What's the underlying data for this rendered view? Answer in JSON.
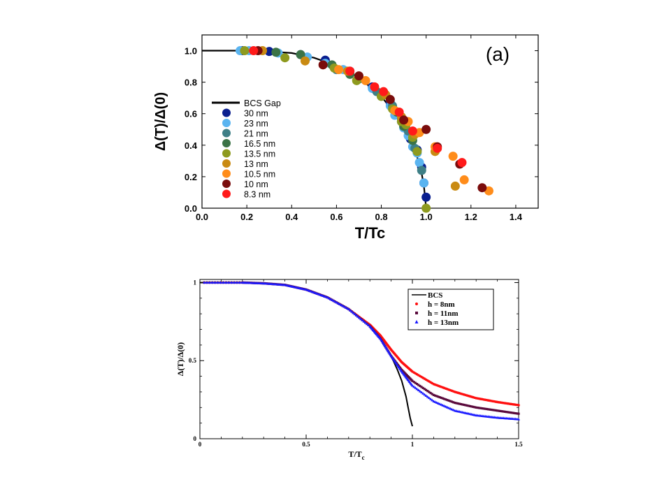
{
  "chart_data": [
    {
      "type": "scatter",
      "panel_label": "(a)",
      "xlabel": "T/Tc",
      "ylabel": "Δ(T)/Δ(0)",
      "xlim": [
        0.0,
        1.5
      ],
      "ylim": [
        0.0,
        1.1
      ],
      "xticks": [
        0.0,
        0.2,
        0.4,
        0.6,
        0.8,
        1.0,
        1.2,
        1.4
      ],
      "yticks": [
        0.0,
        0.2,
        0.4,
        0.6,
        0.8,
        1.0
      ],
      "xtick_labels": [
        "0.0",
        "0.2",
        "0.4",
        "0.6",
        "0.8",
        "1.0",
        "1.2",
        "1.4"
      ],
      "ytick_labels": [
        "0.0",
        "0.2",
        "0.4",
        "0.6",
        "0.8",
        "1.0"
      ],
      "grid": false,
      "legend_position": "left",
      "curve": {
        "name": "BCS Gap",
        "color": "#000000",
        "x": [
          0.0,
          0.2,
          0.3,
          0.4,
          0.5,
          0.6,
          0.7,
          0.8,
          0.85,
          0.9,
          0.93,
          0.95,
          0.97,
          0.98,
          0.99,
          1.0
        ],
        "y": [
          1.0,
          1.0,
          0.995,
          0.985,
          0.955,
          0.905,
          0.83,
          0.71,
          0.62,
          0.52,
          0.44,
          0.37,
          0.28,
          0.22,
          0.14,
          0.0
        ]
      },
      "series": [
        {
          "name": "30 nm",
          "color": "#0a1f8f",
          "x": [
            0.18,
            0.3,
            0.44,
            0.55,
            0.66,
            0.76,
            0.84,
            0.89,
            0.93,
            0.96,
            0.98,
            0.99,
            1.0
          ],
          "y": [
            1.0,
            0.995,
            0.975,
            0.94,
            0.87,
            0.77,
            0.67,
            0.55,
            0.44,
            0.37,
            0.26,
            0.16,
            0.07
          ]
        },
        {
          "name": "23 nm",
          "color": "#5ab4f0",
          "x": [
            0.17,
            0.21,
            0.34,
            0.47,
            0.55,
            0.63,
            0.7,
            0.76,
            0.84,
            0.86,
            0.9,
            0.92,
            0.94,
            0.96,
            0.97,
            0.99
          ],
          "y": [
            1.0,
            1.0,
            0.985,
            0.96,
            0.92,
            0.88,
            0.83,
            0.76,
            0.65,
            0.59,
            0.51,
            0.46,
            0.39,
            0.35,
            0.29,
            0.16
          ]
        },
        {
          "name": "21 nm",
          "color": "#3e7f86",
          "x": [
            0.6,
            0.7,
            0.78,
            0.85,
            0.89,
            0.92,
            0.95,
            0.98
          ],
          "y": [
            0.88,
            0.82,
            0.74,
            0.65,
            0.57,
            0.49,
            0.38,
            0.24
          ]
        },
        {
          "name": "16.5 nm",
          "color": "#3b7346",
          "x": [
            0.33,
            0.44,
            0.58,
            0.66,
            0.8,
            0.87,
            0.9,
            0.94
          ],
          "y": [
            0.99,
            0.975,
            0.91,
            0.85,
            0.71,
            0.61,
            0.52,
            0.43
          ]
        },
        {
          "name": "13.5 nm",
          "color": "#8e9a1e",
          "x": [
            0.19,
            0.37,
            0.59,
            0.69,
            0.8,
            0.85,
            0.89,
            0.91,
            0.94,
            0.96,
            1.0
          ],
          "y": [
            1.0,
            0.955,
            0.89,
            0.81,
            0.71,
            0.63,
            0.55,
            0.53,
            0.45,
            0.36,
            0.0
          ]
        },
        {
          "name": "13 nm",
          "color": "#c98a12",
          "x": [
            0.27,
            0.46,
            0.65,
            0.82,
            0.89,
            0.95,
            1.04,
            1.13
          ],
          "y": [
            1.0,
            0.935,
            0.87,
            0.72,
            0.58,
            0.47,
            0.36,
            0.14
          ]
        },
        {
          "name": "10.5 nm",
          "color": "#ff8c1a",
          "x": [
            0.61,
            0.73,
            0.86,
            0.92,
            0.97,
            1.04,
            1.12,
            1.17,
            1.28
          ],
          "y": [
            0.88,
            0.81,
            0.62,
            0.55,
            0.48,
            0.39,
            0.33,
            0.18,
            0.11
          ]
        },
        {
          "name": "10 nm",
          "color": "#7a0c0c",
          "x": [
            0.25,
            0.54,
            0.7,
            0.84,
            0.9,
            1.0,
            1.05,
            1.15,
            1.25
          ],
          "y": [
            1.0,
            0.91,
            0.84,
            0.69,
            0.56,
            0.5,
            0.39,
            0.28,
            0.13
          ]
        },
        {
          "name": "8.3 nm",
          "color": "#ff1a1a",
          "x": [
            0.23,
            0.66,
            0.77,
            0.81,
            0.88,
            0.94,
            1.05,
            1.16
          ],
          "y": [
            1.0,
            0.87,
            0.77,
            0.74,
            0.61,
            0.49,
            0.38,
            0.29
          ]
        }
      ]
    },
    {
      "type": "line",
      "xlabel": "T/T",
      "xlabel_sub": "c",
      "ylabel": "Δ(T)/Δ(0)",
      "xlim": [
        0.0,
        1.5
      ],
      "ylim": [
        0.0,
        1.02
      ],
      "xticks": [
        0,
        0.5,
        1,
        1.5
      ],
      "yticks": [
        0,
        0.5,
        1
      ],
      "xtick_labels": [
        "0",
        "0.5",
        "1",
        "1.5"
      ],
      "ytick_labels": [
        "0",
        "0.5",
        "1"
      ],
      "grid": false,
      "legend_position": "top-right",
      "series": [
        {
          "name": "BCS",
          "color": "#000000",
          "marker": "line",
          "x": [
            0.0,
            0.2,
            0.3,
            0.4,
            0.5,
            0.6,
            0.7,
            0.8,
            0.85,
            0.9,
            0.93,
            0.95,
            0.97,
            0.98,
            0.99,
            1.0
          ],
          "y": [
            1.0,
            1.0,
            0.995,
            0.985,
            0.955,
            0.905,
            0.83,
            0.72,
            0.64,
            0.53,
            0.44,
            0.37,
            0.27,
            0.2,
            0.13,
            0.08
          ]
        },
        {
          "name": "h = 8nm",
          "color": "#ff1010",
          "marker": "dot",
          "x": [
            0.02,
            0.2,
            0.3,
            0.4,
            0.5,
            0.6,
            0.7,
            0.8,
            0.85,
            0.9,
            0.95,
            1.0,
            1.1,
            1.2,
            1.3,
            1.4,
            1.5
          ],
          "y": [
            1.0,
            1.0,
            0.995,
            0.985,
            0.955,
            0.905,
            0.83,
            0.73,
            0.66,
            0.57,
            0.49,
            0.43,
            0.35,
            0.3,
            0.26,
            0.235,
            0.215
          ]
        },
        {
          "name": "h = 11nm",
          "color": "#5a0a3c",
          "marker": "square",
          "x": [
            0.02,
            0.2,
            0.3,
            0.4,
            0.5,
            0.6,
            0.7,
            0.8,
            0.85,
            0.9,
            0.95,
            1.0,
            1.1,
            1.2,
            1.3,
            1.4,
            1.5
          ],
          "y": [
            1.0,
            1.0,
            0.995,
            0.985,
            0.955,
            0.905,
            0.83,
            0.72,
            0.64,
            0.53,
            0.44,
            0.37,
            0.28,
            0.23,
            0.2,
            0.18,
            0.16
          ]
        },
        {
          "name": "h = 13nm",
          "color": "#1a1aff",
          "marker": "triangle",
          "x": [
            0.02,
            0.2,
            0.3,
            0.4,
            0.5,
            0.6,
            0.7,
            0.8,
            0.85,
            0.9,
            0.95,
            1.0,
            1.1,
            1.2,
            1.3,
            1.4,
            1.5
          ],
          "y": [
            1.0,
            1.0,
            0.995,
            0.985,
            0.955,
            0.905,
            0.83,
            0.72,
            0.64,
            0.53,
            0.43,
            0.34,
            0.24,
            0.18,
            0.15,
            0.135,
            0.125
          ]
        }
      ]
    }
  ]
}
